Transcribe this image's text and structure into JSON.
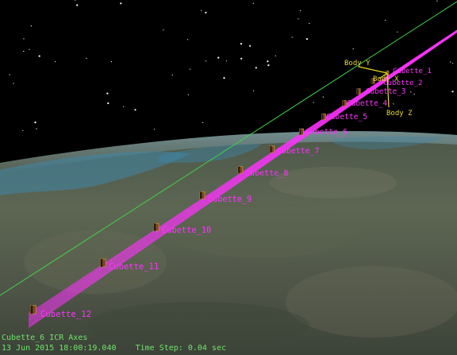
{
  "scene": {
    "satellites": [
      {
        "label": "Cubette_1"
      },
      {
        "label": "Cubette_2"
      },
      {
        "label": "Cubette_3"
      },
      {
        "label": "Cubette_4"
      },
      {
        "label": "Cubette_5"
      },
      {
        "label": "Cubette_6"
      },
      {
        "label": "Cubette_7"
      },
      {
        "label": "Cubette_8"
      },
      {
        "label": "Cubette_9"
      },
      {
        "label": "Cubette_10"
      },
      {
        "label": "Cubette_11"
      },
      {
        "label": "Cubette_12"
      }
    ],
    "axes": {
      "x_label": "Body X",
      "y_label": "Body Y",
      "z_label": "Body Z"
    }
  },
  "status": {
    "frame": "Cubette_6 ICR Axes",
    "datetime": "13 Jun 2015 18:00:19.040",
    "time_step": "Time Step: 0.04 sec"
  },
  "colors": {
    "space": "#000000",
    "orbit_track": "#ff33ff",
    "satellite_label": "#ff33ff",
    "axis_label": "#e6d820",
    "orbit_line": "#3fd34a",
    "status_text": "#6fe36b"
  }
}
